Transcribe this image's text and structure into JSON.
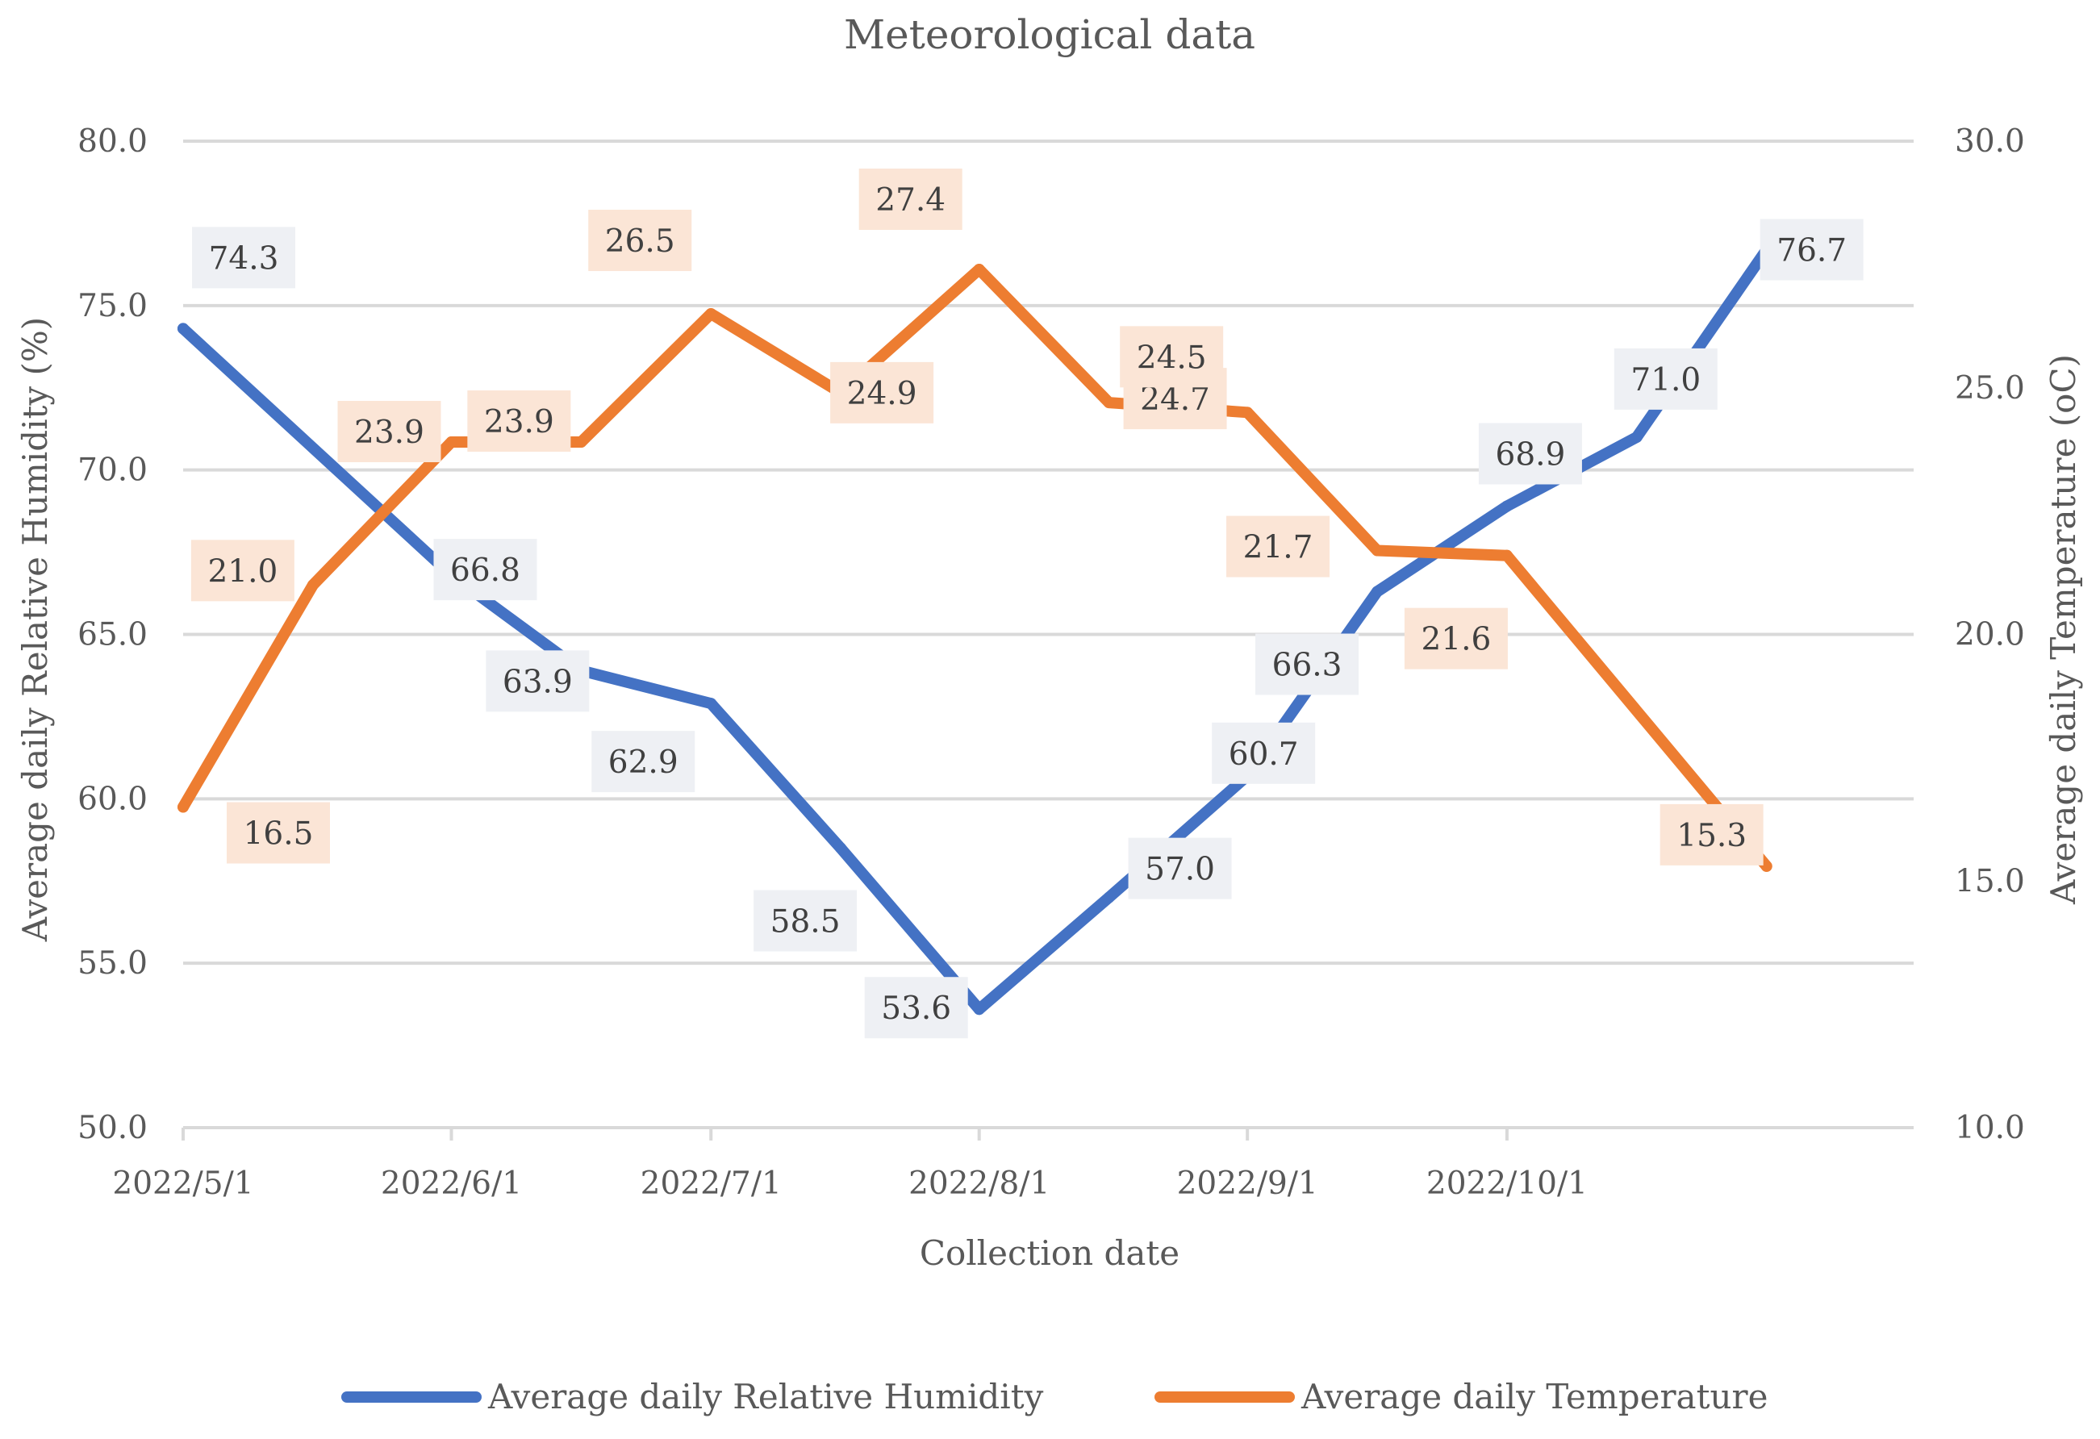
{
  "chart_data": {
    "type": "line",
    "title": "Meteorological data",
    "xlabel": "Collection date",
    "ylabel": "Average daily Relative Humidity (%)",
    "y2label": "Average daily Temperature (oC)",
    "ylim": [
      50,
      80
    ],
    "y2lim": [
      10,
      30
    ],
    "yticks": [
      "80.0",
      "75.0",
      "70.0",
      "65.0",
      "60.0",
      "55.0",
      "50.0"
    ],
    "y2ticks": [
      "30.0",
      "25.0",
      "20.0",
      "15.0",
      "10.0"
    ],
    "x_ticks": [
      "2022/5/1",
      "2022/6/1",
      "2022/7/1",
      "2022/8/1",
      "2022/9/1",
      "2022/10/1"
    ],
    "x_days": [
      0,
      15,
      31,
      46,
      61,
      76,
      92,
      107,
      123,
      138,
      153,
      168,
      183,
      198
    ],
    "grid": true,
    "legend": "bottom",
    "series": [
      {
        "name": "Average daily Relative Humidity",
        "axis": "left",
        "color": "#4472C4",
        "values": [
          74.3,
          66.8,
          63.9,
          62.9,
          58.5,
          53.6,
          57.0,
          60.7,
          66.3,
          68.9,
          71.0,
          76.7
        ],
        "point_index": [
          0,
          2,
          3,
          4,
          5,
          6,
          7,
          8,
          9,
          10,
          11,
          12
        ],
        "labels": [
          "74.3",
          "66.8",
          "63.9",
          "62.9",
          "58.5",
          "53.6",
          "57.0",
          "60.7",
          "66.3",
          "68.9",
          "71.0",
          "76.7"
        ]
      },
      {
        "name": "Average daily Temperature",
        "axis": "right",
        "color": "#ED7D31",
        "values": [
          16.5,
          21.0,
          23.9,
          23.9,
          26.5,
          24.9,
          27.4,
          24.7,
          24.5,
          21.7,
          21.6,
          15.3
        ],
        "point_index": [
          0,
          1,
          2,
          3,
          4,
          5,
          6,
          7,
          8,
          9,
          10,
          12
        ],
        "labels": [
          "16.5",
          "21.0",
          "23.9",
          "23.9",
          "26.5",
          "24.9",
          "27.4",
          "24.7",
          "24.5",
          "21.7",
          "21.6",
          "15.3"
        ]
      }
    ]
  }
}
